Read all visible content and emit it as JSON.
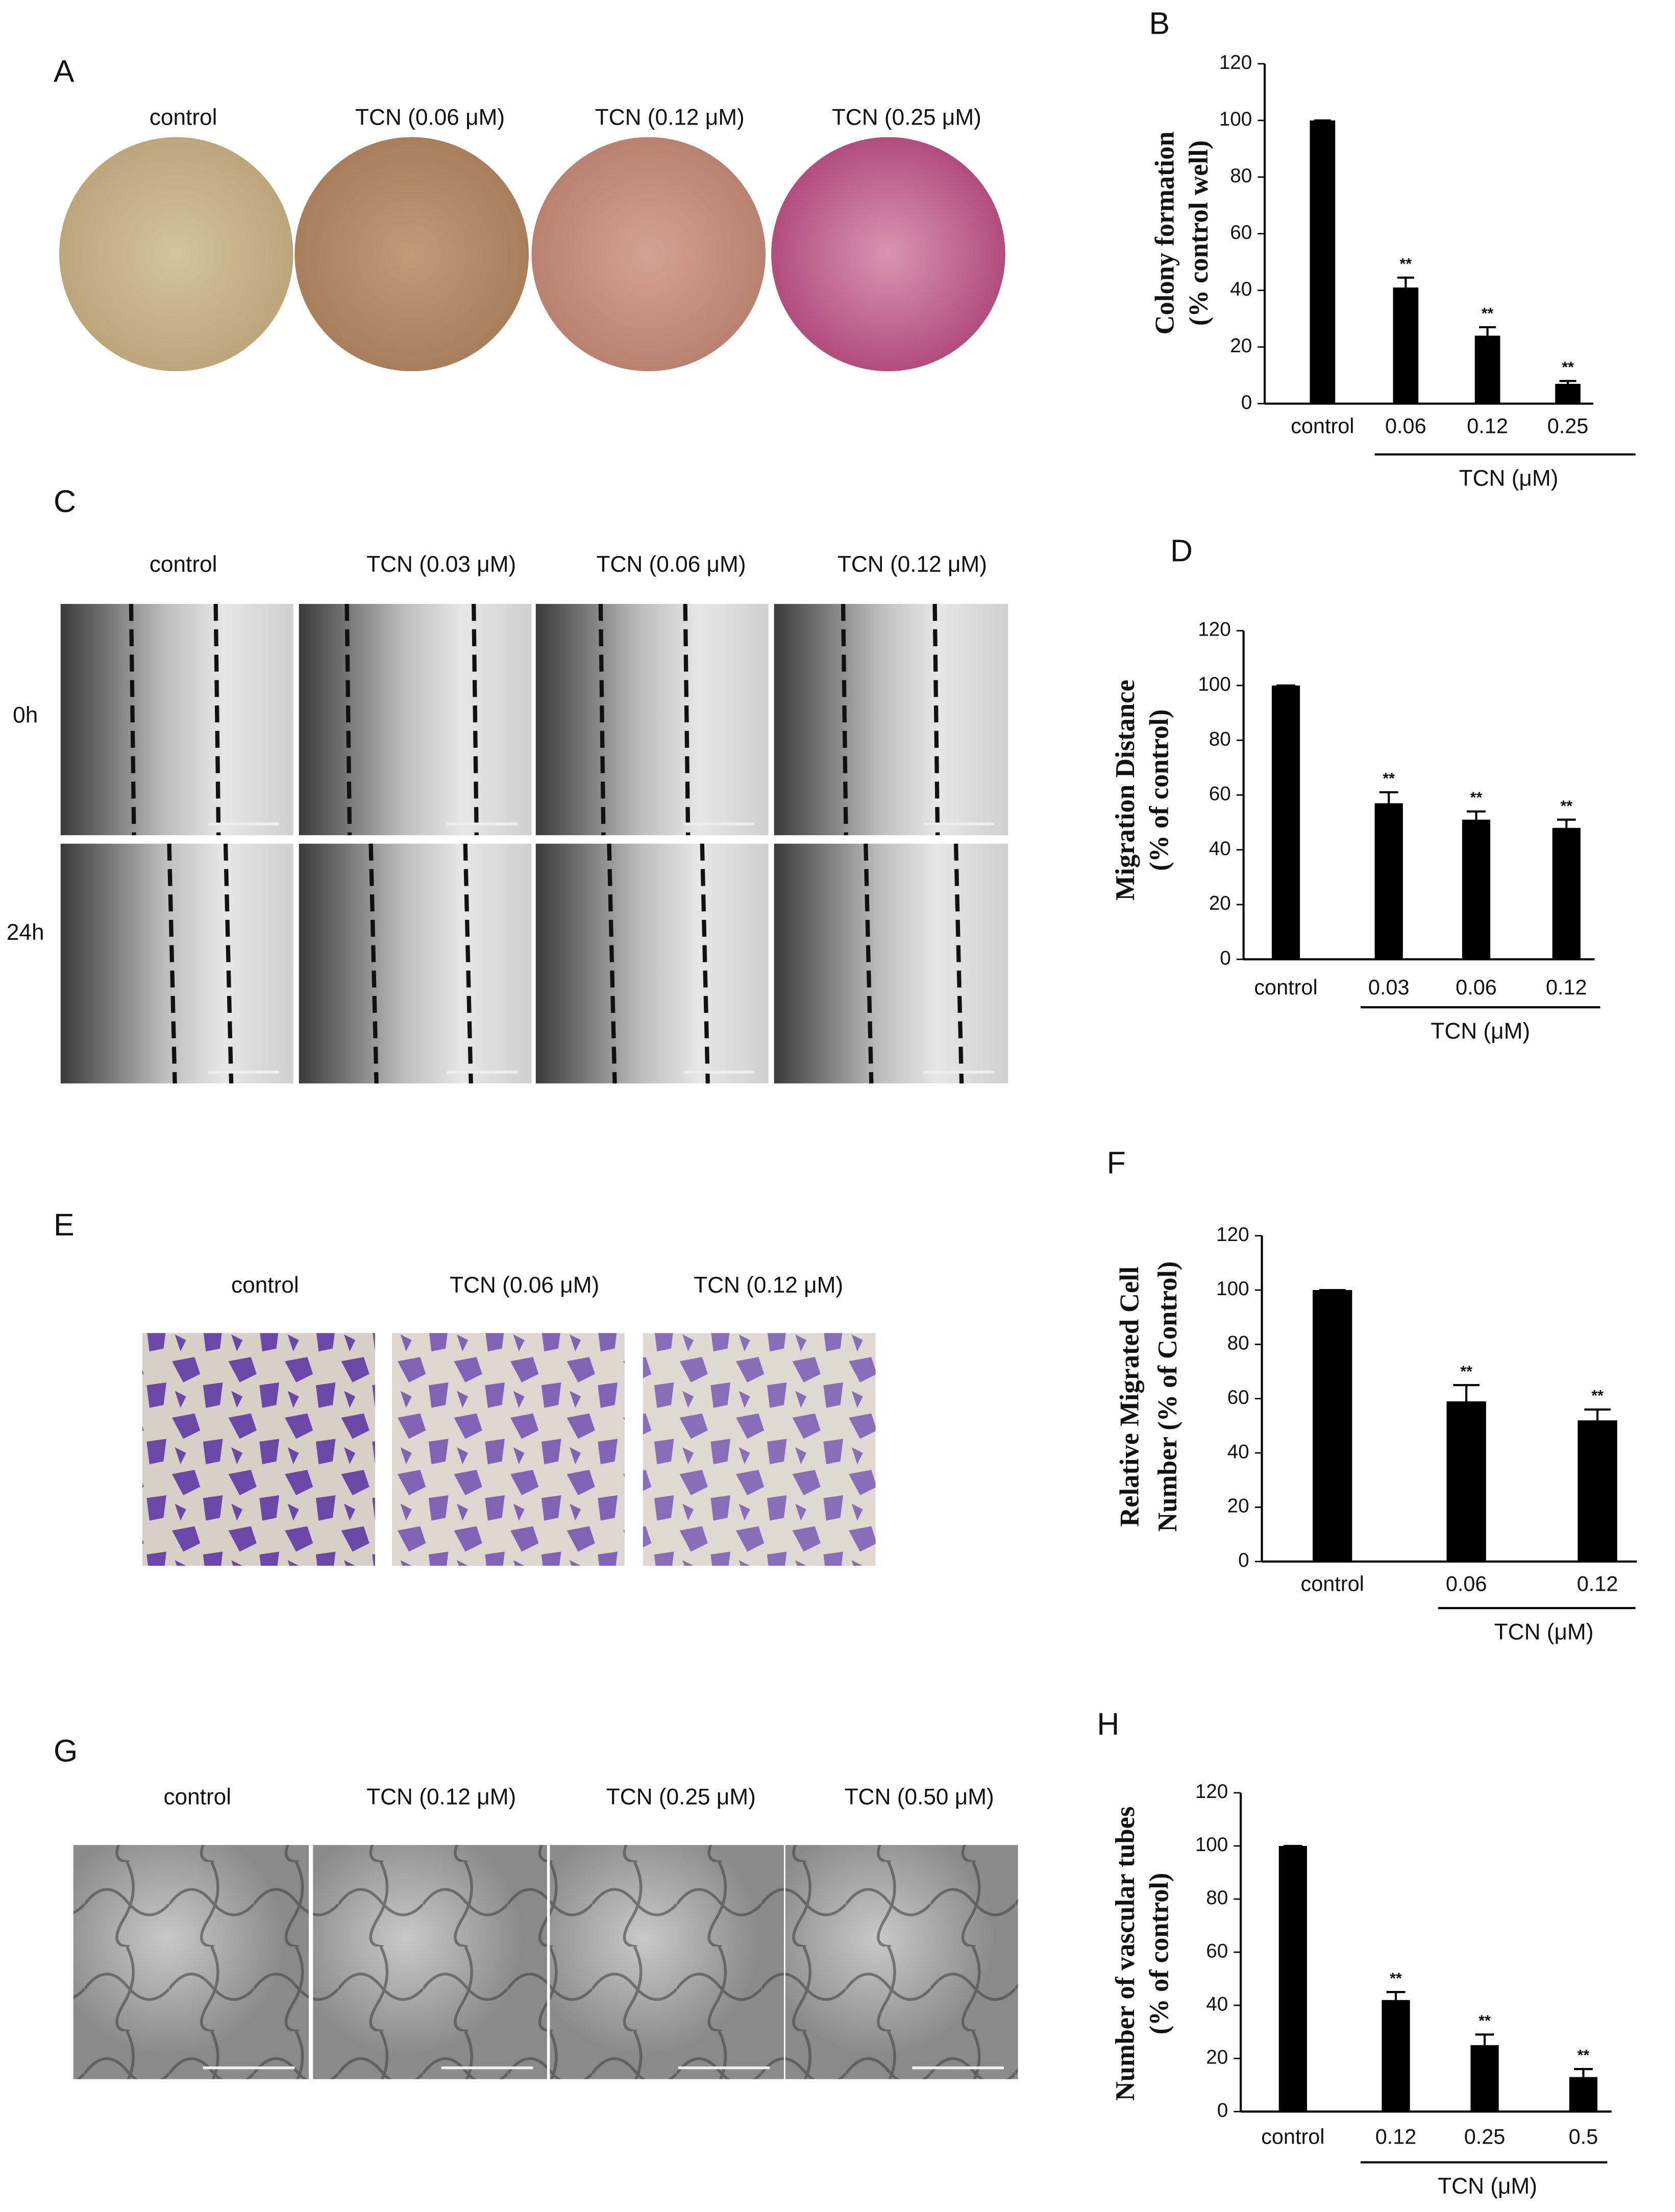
{
  "figure": {
    "panels": [
      {
        "letter": "A",
        "labels": [
          "control",
          "TCN (0.06 μM)",
          "TCN (0.12 μM)",
          "TCN (0.25 μM)"
        ]
      },
      {
        "letter": "C",
        "labels": [
          "control",
          "TCN (0.03 μM)",
          "TCN (0.06 μM)",
          "TCN (0.12 μM)"
        ],
        "rows": [
          "0h",
          "24h"
        ]
      },
      {
        "letter": "E",
        "labels": [
          "control",
          "TCN (0.06 μM)",
          "TCN (0.12 μM)"
        ]
      },
      {
        "letter": "G",
        "labels": [
          "control",
          "TCN (0.12 μM)",
          "TCN (0.25 μM)",
          "TCN (0.50 μM)"
        ]
      }
    ]
  },
  "chart_data": [
    {
      "type": "bar",
      "panel_label": "B",
      "ylabel": [
        "Colony formation",
        "(% control well)"
      ],
      "group_label": "TCN (μM)",
      "categories": [
        "control",
        "0.06",
        "0.12",
        "0.25"
      ],
      "values": [
        100,
        41,
        24,
        7
      ],
      "errors": [
        0,
        3.5,
        3,
        1
      ],
      "significance": [
        null,
        "**",
        "**",
        "**"
      ],
      "color": "#000000",
      "ylim": [
        0,
        120
      ],
      "yticks": [
        0,
        20,
        40,
        60,
        80,
        100,
        120
      ]
    },
    {
      "type": "bar",
      "panel_label": "D",
      "ylabel": [
        "Migration Distance",
        "(% of control)"
      ],
      "group_label": "TCN (μM)",
      "categories": [
        "control",
        "0.03",
        "0.06",
        "0.12"
      ],
      "values": [
        100,
        57,
        51,
        48
      ],
      "errors": [
        0,
        4,
        3,
        3
      ],
      "significance": [
        null,
        "**",
        "**",
        "**"
      ],
      "color": "#000000",
      "ylim": [
        0,
        120
      ],
      "yticks": [
        0,
        20,
        40,
        60,
        80,
        100,
        120
      ]
    },
    {
      "type": "bar",
      "panel_label": "F",
      "ylabel": [
        "Relative Migrated Cell",
        "Number (% of Control)"
      ],
      "group_label": "TCN (μM)",
      "categories": [
        "control",
        "0.06",
        "0.12"
      ],
      "values": [
        100,
        59,
        52
      ],
      "errors": [
        0,
        6,
        4
      ],
      "significance": [
        null,
        "**",
        "**"
      ],
      "color": "#000000",
      "ylim": [
        0,
        120
      ],
      "yticks": [
        0,
        20,
        40,
        60,
        80,
        100,
        120
      ]
    },
    {
      "type": "bar",
      "panel_label": "H",
      "ylabel": [
        "Number of vascular  tubes",
        "(% of control)"
      ],
      "group_label": "TCN (μM)",
      "categories": [
        "control",
        "0.12",
        "0.25",
        "0.5"
      ],
      "values": [
        100,
        42,
        25,
        13
      ],
      "errors": [
        0,
        3,
        4,
        3
      ],
      "significance": [
        null,
        "**",
        "**",
        "**"
      ],
      "color": "#000000",
      "ylim": [
        0,
        120
      ],
      "yticks": [
        0,
        20,
        40,
        60,
        80,
        100,
        120
      ]
    }
  ]
}
